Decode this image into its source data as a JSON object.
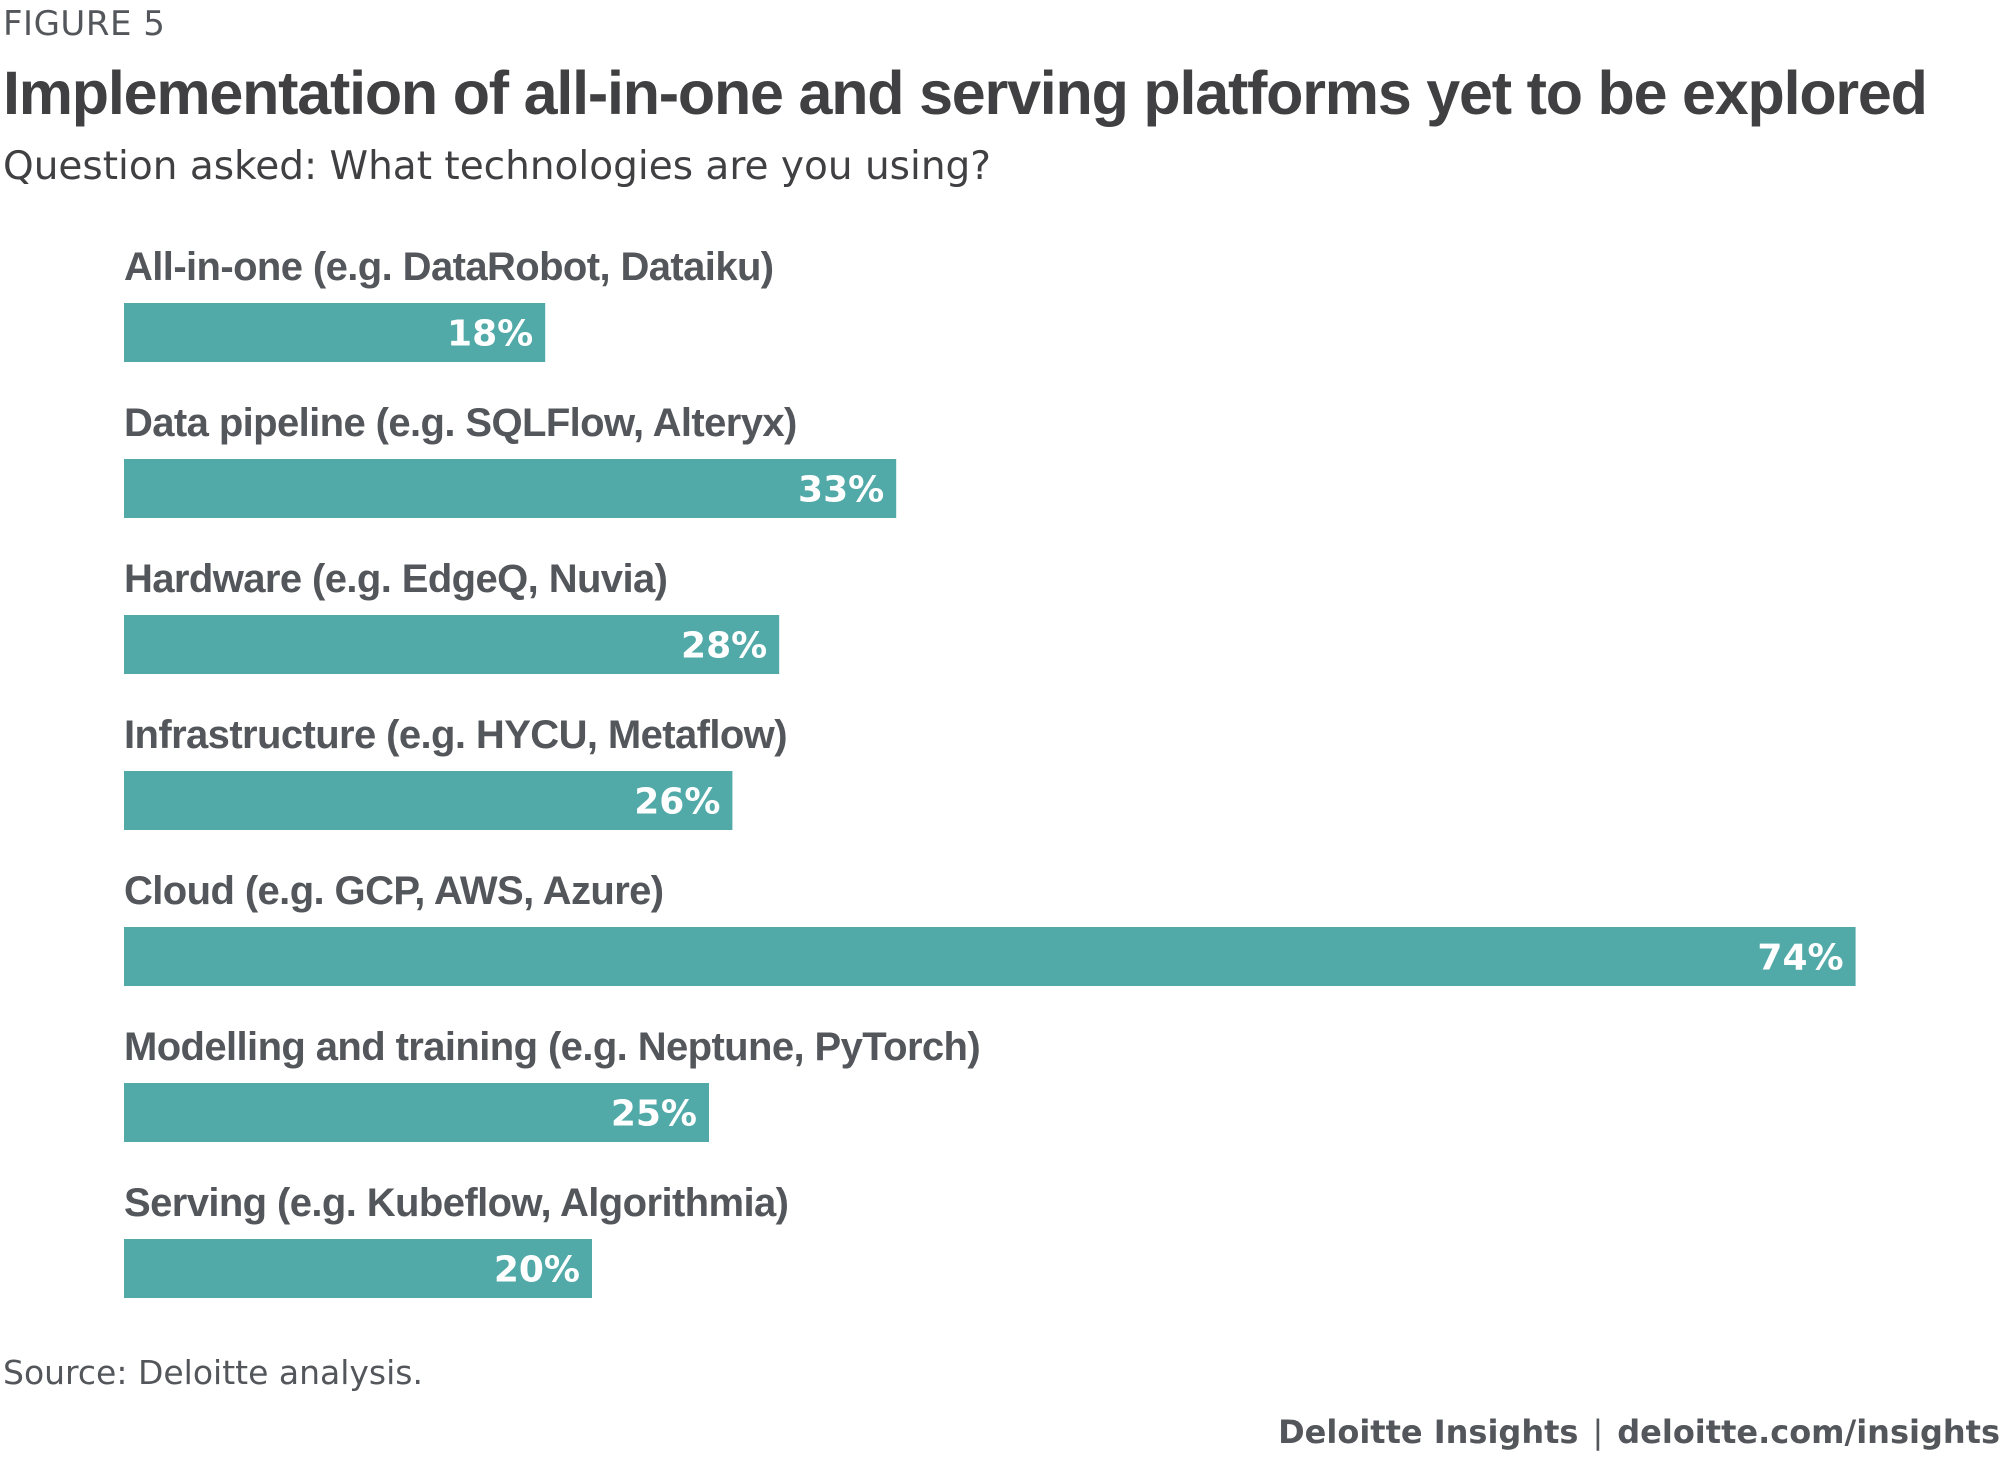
{
  "header": {
    "figure_label": "FIGURE 5",
    "title": "Implementation of all-in-one and serving platforms yet to be explored",
    "subtitle": "Question asked: What technologies are you using?"
  },
  "chart_data": {
    "type": "bar",
    "orientation": "horizontal",
    "title": "Implementation of all-in-one and serving platforms yet to be explored",
    "subtitle": "Question asked: What technologies are you using?",
    "categories": [
      "All-in-one (e.g. DataRobot, Dataiku)",
      "Data pipeline (e.g. SQLFlow, Alteryx)",
      "Hardware (e.g. EdgeQ, Nuvia)",
      "Infrastructure (e.g. HYCU, Metaflow)",
      "Cloud (e.g. GCP, AWS, Azure)",
      "Modelling and training (e.g. Neptune, PyTorch)",
      "Serving (e.g. Kubeflow, Algorithmia)"
    ],
    "values": [
      18,
      33,
      28,
      26,
      74,
      25,
      20
    ],
    "value_labels": [
      "18%",
      "33%",
      "28%",
      "26%",
      "74%",
      "25%",
      "20%"
    ],
    "unit": "%",
    "xlim": [
      0,
      74
    ],
    "grid": false,
    "legend": "none",
    "bar_color": "#52aaa8"
  },
  "footer": {
    "source": "Source: Deloitte analysis.",
    "brand": "Deloitte Insights",
    "separator": "|",
    "url": "deloitte.com/insights"
  }
}
